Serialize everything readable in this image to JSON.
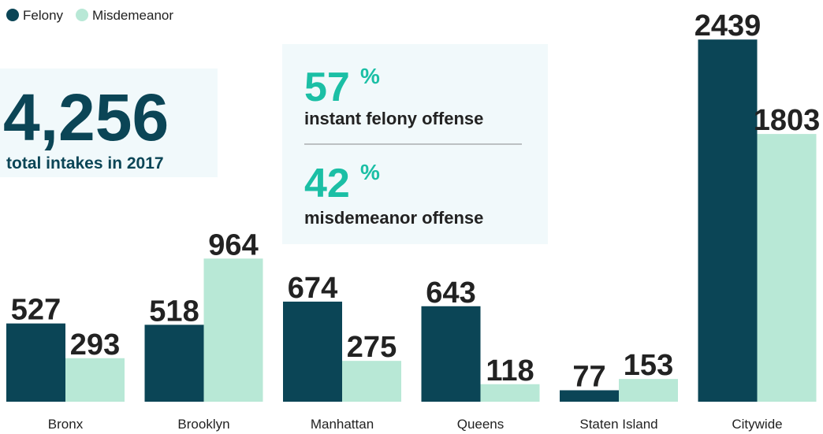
{
  "chart_data": {
    "type": "bar",
    "categories": [
      "Bronx",
      "Brooklyn",
      "Manhattan",
      "Queens",
      "Staten Island",
      "Citywide"
    ],
    "series": [
      {
        "name": "Felony",
        "color": "#0b4556",
        "values": [
          527,
          518,
          674,
          643,
          77,
          2439
        ]
      },
      {
        "name": "Misdemeanor",
        "color": "#b8e8d6",
        "values": [
          293,
          964,
          275,
          118,
          153,
          1803
        ]
      }
    ],
    "ylim": [
      0,
      2700
    ],
    "legend": "top-left",
    "annotations": [
      {
        "number": "4,256",
        "text": "total intakes in 2017"
      },
      {
        "number": "57",
        "unit": "%",
        "text": "instant felony offense"
      },
      {
        "number": "42",
        "unit": "%",
        "text": "misdemeanor offense"
      }
    ]
  }
}
